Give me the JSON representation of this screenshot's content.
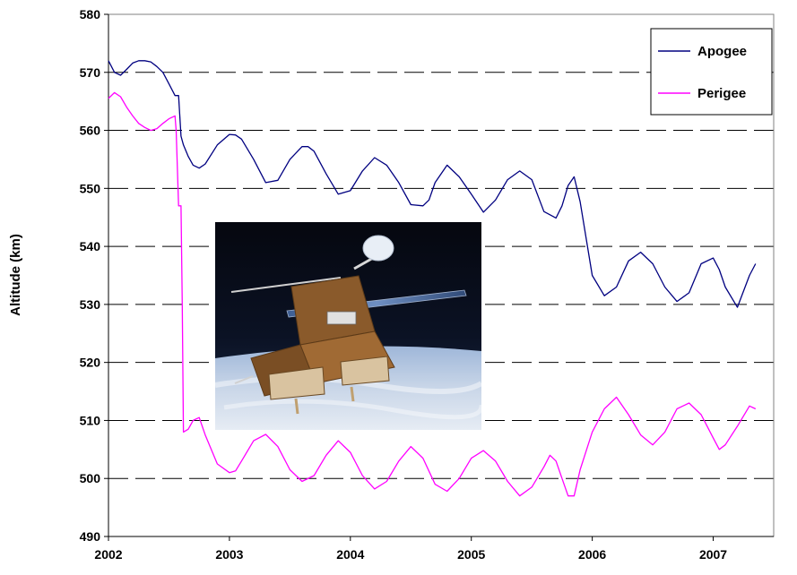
{
  "chart_data": {
    "type": "line",
    "title": "",
    "xlabel": "",
    "ylabel": "Altitude  (km)",
    "xlim": [
      2002,
      2007.5
    ],
    "ylim": [
      490,
      580
    ],
    "x_ticks": [
      "2002",
      "2003",
      "2004",
      "2005",
      "2006",
      "2007"
    ],
    "y_ticks": [
      "490",
      "500",
      "510",
      "520",
      "530",
      "540",
      "550",
      "560",
      "570",
      "580"
    ],
    "grid": "horizontal dashed",
    "legend": "top-right",
    "series": [
      {
        "name": "Apogee",
        "color": "#000080",
        "x": [
          2002.0,
          2002.05,
          2002.1,
          2002.15,
          2002.2,
          2002.25,
          2002.3,
          2002.35,
          2002.4,
          2002.45,
          2002.5,
          2002.55,
          2002.58,
          2002.6,
          2002.62,
          2002.66,
          2002.7,
          2002.75,
          2002.8,
          2002.9,
          2003.0,
          2003.05,
          2003.1,
          2003.2,
          2003.3,
          2003.4,
          2003.5,
          2003.6,
          2003.65,
          2003.7,
          2003.8,
          2003.9,
          2004.0,
          2004.1,
          2004.2,
          2004.3,
          2004.4,
          2004.5,
          2004.6,
          2004.65,
          2004.7,
          2004.8,
          2004.9,
          2005.0,
          2005.1,
          2005.2,
          2005.3,
          2005.4,
          2005.5,
          2005.6,
          2005.7,
          2005.75,
          2005.8,
          2005.85,
          2005.9,
          2006.0,
          2006.1,
          2006.2,
          2006.3,
          2006.4,
          2006.5,
          2006.6,
          2006.7,
          2006.8,
          2006.9,
          2007.0,
          2007.05,
          2007.1,
          2007.2,
          2007.3,
          2007.35
        ],
        "y": [
          572,
          570,
          569.5,
          570.5,
          571.6,
          572,
          572,
          571.8,
          571,
          570,
          568,
          566,
          566,
          559,
          557.5,
          555.5,
          554,
          553.5,
          554.2,
          557.5,
          559.3,
          559.2,
          558.5,
          555,
          551,
          551.4,
          555,
          557.2,
          557.2,
          556.4,
          552.5,
          549,
          549.6,
          553,
          555.3,
          554,
          551,
          547.2,
          547,
          548,
          551,
          554,
          552,
          549,
          545.9,
          548,
          551.5,
          553,
          551.5,
          546,
          544.9,
          547,
          550.5,
          552,
          547.7,
          535,
          531.5,
          533,
          537.5,
          539,
          537,
          533,
          530.5,
          532,
          537,
          538,
          536,
          533,
          529.5,
          535,
          537
        ]
      },
      {
        "name": "Perigee",
        "color": "#ff00ff",
        "x": [
          2002.0,
          2002.05,
          2002.1,
          2002.15,
          2002.2,
          2002.25,
          2002.3,
          2002.35,
          2002.4,
          2002.45,
          2002.5,
          2002.55,
          2002.56,
          2002.58,
          2002.6,
          2002.61,
          2002.62,
          2002.66,
          2002.7,
          2002.75,
          2002.8,
          2002.9,
          2003.0,
          2003.05,
          2003.1,
          2003.2,
          2003.3,
          2003.4,
          2003.5,
          2003.6,
          2003.7,
          2003.8,
          2003.9,
          2004.0,
          2004.1,
          2004.2,
          2004.3,
          2004.4,
          2004.5,
          2004.6,
          2004.7,
          2004.8,
          2004.9,
          2005.0,
          2005.1,
          2005.2,
          2005.3,
          2005.4,
          2005.5,
          2005.6,
          2005.65,
          2005.7,
          2005.75,
          2005.8,
          2005.85,
          2005.9,
          2006.0,
          2006.1,
          2006.2,
          2006.3,
          2006.4,
          2006.5,
          2006.6,
          2006.7,
          2006.8,
          2006.9,
          2007.0,
          2007.05,
          2007.1,
          2007.2,
          2007.3,
          2007.35
        ],
        "y": [
          565.5,
          566.5,
          565.8,
          564,
          562.5,
          561.2,
          560.5,
          560,
          560.3,
          561.2,
          562,
          562.5,
          560,
          547,
          547,
          530,
          508,
          508.5,
          510,
          510.5,
          507.5,
          502.5,
          501,
          501.3,
          503,
          506.5,
          507.6,
          505.5,
          501.5,
          499.5,
          500.5,
          504,
          506.5,
          504.5,
          500.5,
          498.2,
          499.5,
          503,
          505.5,
          503.5,
          499,
          497.8,
          500,
          503.5,
          504.8,
          503,
          499.5,
          497,
          498.5,
          502,
          504,
          503,
          500,
          497,
          497,
          501.5,
          508,
          512,
          514,
          511,
          507.5,
          505.8,
          508,
          512,
          513,
          511,
          507,
          505,
          505.8,
          509,
          512.5,
          512
        ]
      }
    ]
  },
  "colors": {
    "apogee": "#000080",
    "perigee": "#ff00ff",
    "grid": "#000000"
  }
}
